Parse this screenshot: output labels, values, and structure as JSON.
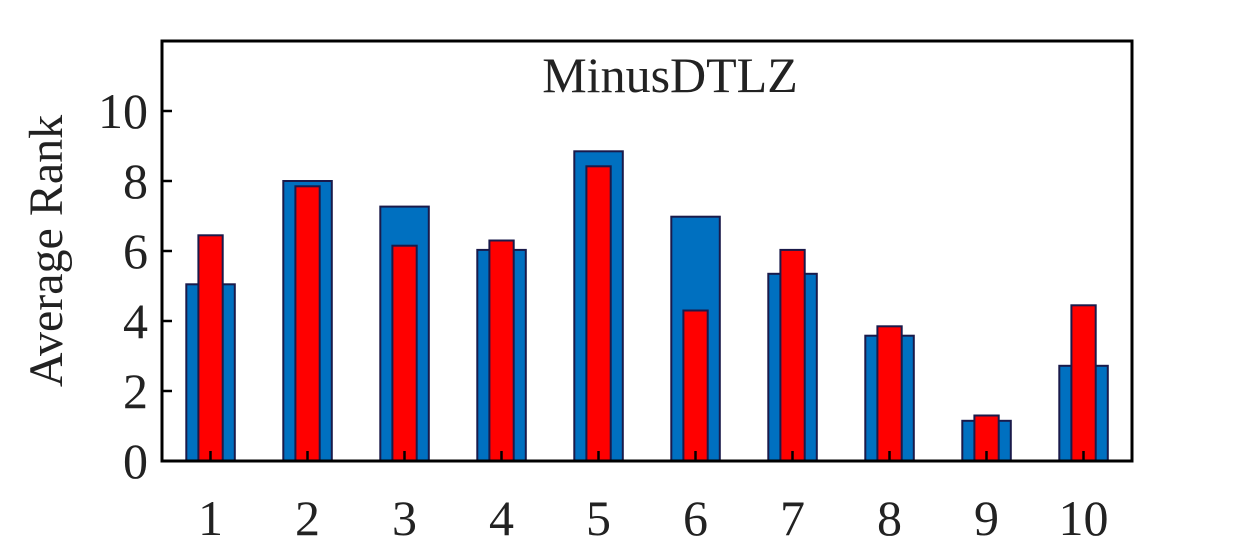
{
  "chart_data": {
    "type": "bar",
    "title": "MinusDTLZ",
    "xlabel": "",
    "ylabel": "Average Rank",
    "categories": [
      "1",
      "2",
      "3",
      "4",
      "5",
      "6",
      "7",
      "8",
      "9",
      "10"
    ],
    "series": [
      {
        "name": "",
        "color": "#0070C0",
        "values": [
          5.05,
          8.0,
          7.27,
          6.03,
          8.85,
          6.98,
          5.35,
          3.58,
          1.15,
          2.72
        ]
      },
      {
        "name": "",
        "color": "#FF0000",
        "values": [
          6.45,
          7.85,
          6.15,
          6.3,
          8.42,
          4.3,
          6.03,
          3.85,
          1.3,
          4.45
        ]
      }
    ],
    "yticks": [
      0,
      2,
      4,
      6,
      8,
      10
    ],
    "ylim": [
      0,
      12
    ],
    "xlim": [
      0.5,
      10.5
    ],
    "grid": false,
    "legend": "none"
  }
}
